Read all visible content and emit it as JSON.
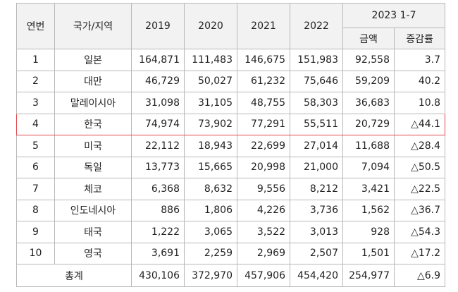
{
  "headers": {
    "rank": "연번",
    "country": "국가/지역",
    "years": [
      "2019",
      "2020",
      "2021",
      "2022"
    ],
    "period": "2023 1-7",
    "amount": "금액",
    "growth": "증감률"
  },
  "rows": [
    {
      "rank": "1",
      "country": "일본",
      "y2019": "164,871",
      "y2020": "111,483",
      "y2021": "146,675",
      "y2022": "151,983",
      "amount": "92,558",
      "growth": "3.7"
    },
    {
      "rank": "2",
      "country": "대만",
      "y2019": "46,729",
      "y2020": "50,027",
      "y2021": "61,232",
      "y2022": "75,646",
      "amount": "59,209",
      "growth": "40.2"
    },
    {
      "rank": "3",
      "country": "말레이시아",
      "y2019": "31,098",
      "y2020": "31,105",
      "y2021": "48,755",
      "y2022": "58,303",
      "amount": "36,683",
      "growth": "10.8"
    },
    {
      "rank": "4",
      "country": "한국",
      "y2019": "74,974",
      "y2020": "73,902",
      "y2021": "77,291",
      "y2022": "55,511",
      "amount": "20,729",
      "growth": "△44.1"
    },
    {
      "rank": "5",
      "country": "미국",
      "y2019": "22,112",
      "y2020": "18,943",
      "y2021": "22,699",
      "y2022": "27,014",
      "amount": "11,688",
      "growth": "△28.4"
    },
    {
      "rank": "6",
      "country": "독일",
      "y2019": "13,773",
      "y2020": "15,665",
      "y2021": "20,998",
      "y2022": "21,000",
      "amount": "7,094",
      "growth": "△50.5"
    },
    {
      "rank": "7",
      "country": "체코",
      "y2019": "6,368",
      "y2020": "8,632",
      "y2021": "9,556",
      "y2022": "8,212",
      "amount": "3,421",
      "growth": "△22.5"
    },
    {
      "rank": "8",
      "country": "인도네시아",
      "y2019": "886",
      "y2020": "1,806",
      "y2021": "4,226",
      "y2022": "3,736",
      "amount": "1,562",
      "growth": "△36.7"
    },
    {
      "rank": "9",
      "country": "태국",
      "y2019": "1,222",
      "y2020": "3,065",
      "y2021": "3,522",
      "y2022": "3,013",
      "amount": "928",
      "growth": "△54.3"
    },
    {
      "rank": "10",
      "country": "영국",
      "y2019": "3,691",
      "y2020": "2,259",
      "y2021": "2,969",
      "y2022": "2,507",
      "amount": "1,501",
      "growth": "△17.2"
    }
  ],
  "total": {
    "label": "총계",
    "y2019": "430,106",
    "y2020": "372,970",
    "y2021": "457,906",
    "y2022": "454,420",
    "amount": "254,977",
    "growth": "△6.9"
  },
  "highlight_color": "#e0474c"
}
